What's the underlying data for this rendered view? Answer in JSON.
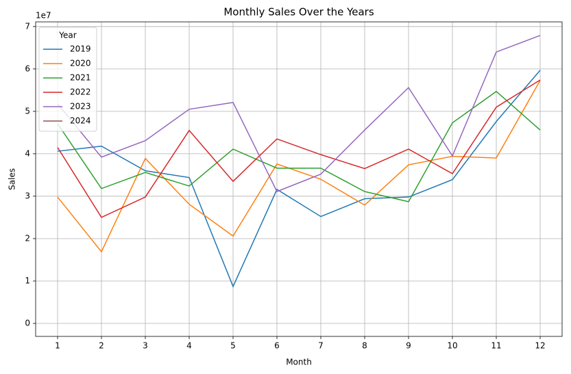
{
  "chart_data": {
    "type": "line",
    "title": "Monthly Sales Over the Years",
    "xlabel": "Month",
    "ylabel": "Sales",
    "offset_label": "1e7",
    "x": [
      1,
      2,
      3,
      4,
      5,
      6,
      7,
      8,
      9,
      10,
      11,
      12
    ],
    "xlim": [
      0.5,
      12.5
    ],
    "xticks": [
      1,
      2,
      3,
      4,
      5,
      6,
      7,
      8,
      9,
      10,
      11,
      12
    ],
    "ylim": [
      -3060000,
      71100000
    ],
    "yticks": [
      {
        "value": 0,
        "label": "0"
      },
      {
        "value": 10000000,
        "label": "1"
      },
      {
        "value": 20000000,
        "label": "2"
      },
      {
        "value": 30000000,
        "label": "3"
      },
      {
        "value": 40000000,
        "label": "4"
      },
      {
        "value": 50000000,
        "label": "5"
      },
      {
        "value": 60000000,
        "label": "6"
      },
      {
        "value": 70000000,
        "label": "7"
      }
    ],
    "grid": true,
    "legend_title": "Year",
    "legend": "upper left",
    "series": [
      {
        "name": "2019",
        "color": "#1f77b4",
        "values": [
          40600000,
          41800000,
          36000000,
          34400000,
          8700000,
          31600000,
          25200000,
          29400000,
          29800000,
          33900000,
          47600000,
          59700000
        ]
      },
      {
        "name": "2020",
        "color": "#ff7f0e",
        "values": [
          29800000,
          16900000,
          38900000,
          28100000,
          20600000,
          37600000,
          34000000,
          27900000,
          37400000,
          39400000,
          39000000,
          57300000
        ]
      },
      {
        "name": "2021",
        "color": "#2ca02c",
        "values": [
          47100000,
          31800000,
          35600000,
          32400000,
          41100000,
          36600000,
          36600000,
          31100000,
          28700000,
          47300000,
          54700000,
          45600000
        ]
      },
      {
        "name": "2022",
        "color": "#d62728",
        "values": [
          41500000,
          25000000,
          29800000,
          45500000,
          33500000,
          43500000,
          39800000,
          36500000,
          41100000,
          35300000,
          51000000,
          57400000
        ]
      },
      {
        "name": "2023",
        "color": "#9467bd",
        "values": [
          51800000,
          39200000,
          43100000,
          50500000,
          52100000,
          31100000,
          35200000,
          45600000,
          55600000,
          39500000,
          64000000,
          67900000
        ]
      },
      {
        "name": "2024",
        "color": "#8c564b",
        "values": [
          null,
          null,
          null,
          null,
          null,
          null,
          null,
          null,
          null,
          null,
          null,
          null
        ]
      }
    ]
  }
}
